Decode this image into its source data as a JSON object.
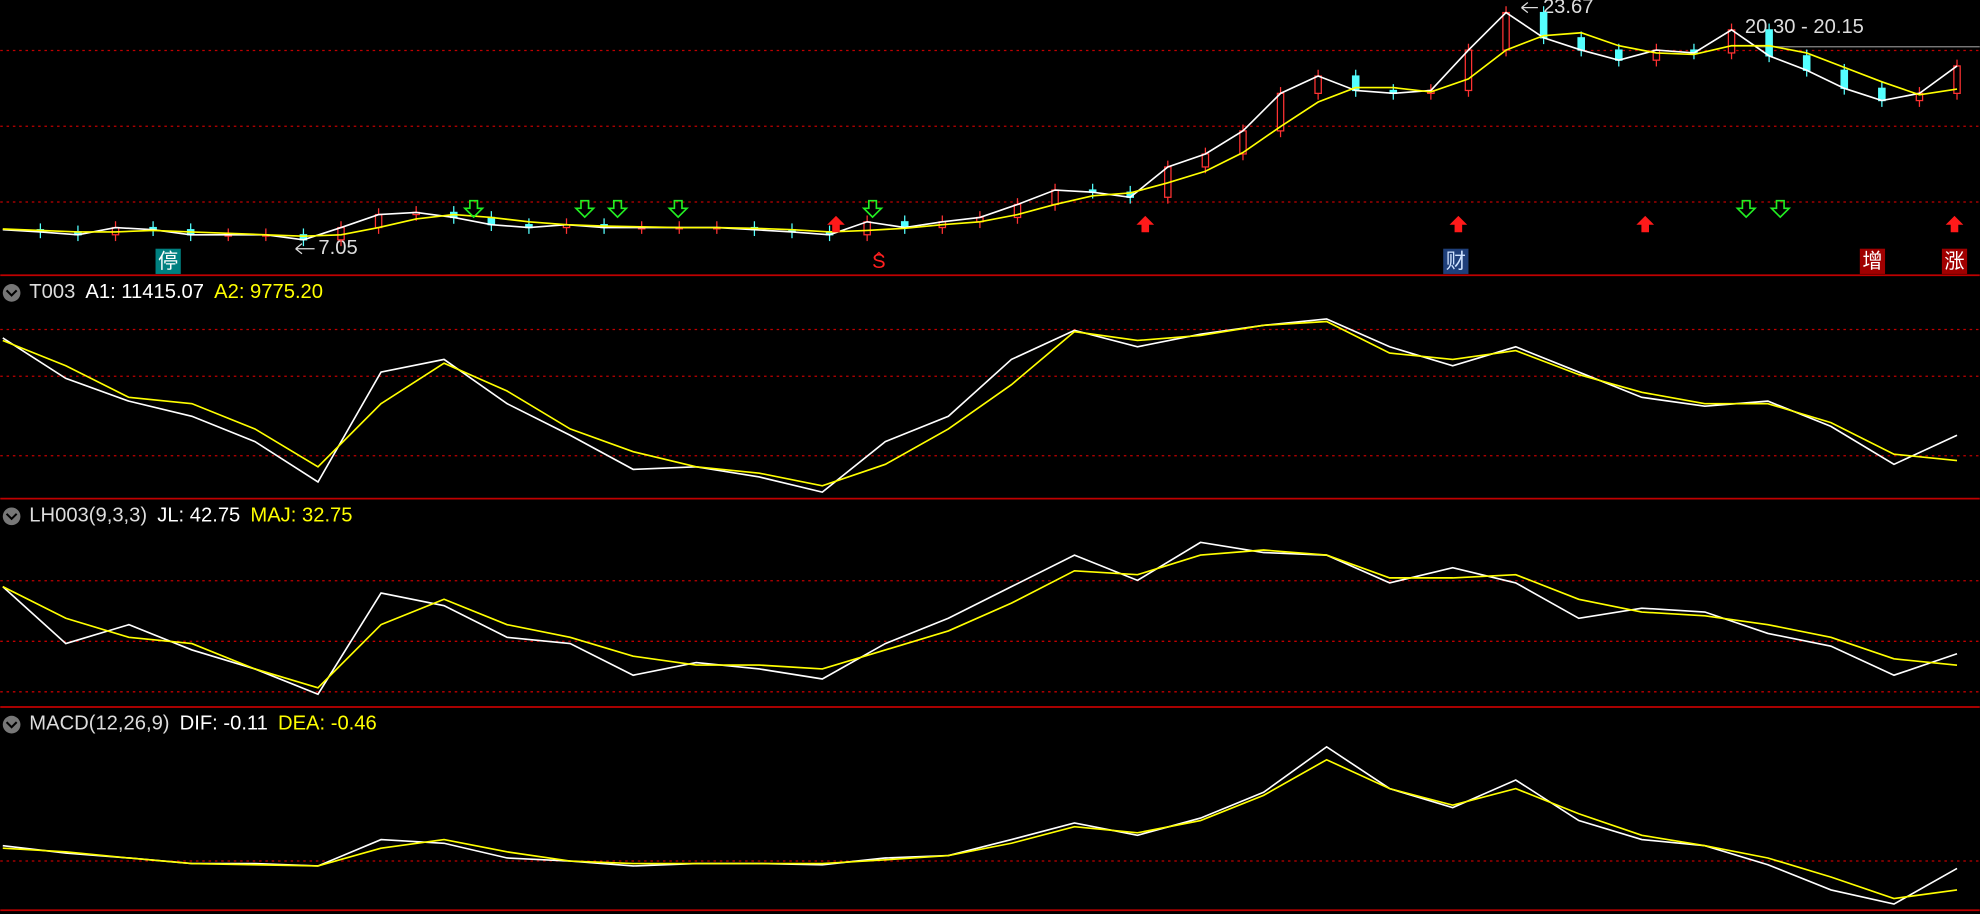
{
  "price": {
    "type": "candlestick",
    "ylim": [
      4.86,
      23.67
    ],
    "close": [
      7.75,
      7.6,
      7.4,
      7.9,
      7.75,
      7.4,
      7.4,
      7.4,
      7.05,
      7.9,
      8.8,
      8.95,
      8.6,
      8.1,
      7.9,
      8.1,
      7.9,
      7.9,
      7.9,
      7.9,
      7.75,
      7.6,
      7.4,
      8.3,
      7.9,
      8.3,
      8.6,
      9.5,
      10.5,
      10.35,
      10.0,
      12.1,
      13.0,
      14.6,
      17.2,
      18.4,
      17.4,
      17.2,
      17.4,
      20.2,
      22.8,
      21.05,
      20.2,
      19.5,
      20.2,
      20.0,
      21.6,
      19.8,
      18.8,
      17.55,
      16.7,
      17.2,
      19.1
    ],
    "ma": [
      7.8,
      7.7,
      7.6,
      7.6,
      7.7,
      7.6,
      7.5,
      7.4,
      7.3,
      7.4,
      7.9,
      8.5,
      8.8,
      8.6,
      8.3,
      8.1,
      8.0,
      7.95,
      7.9,
      7.9,
      7.85,
      7.75,
      7.6,
      7.7,
      7.85,
      8.1,
      8.3,
      8.8,
      9.5,
      10.1,
      10.3,
      11.0,
      11.8,
      13.1,
      14.9,
      16.6,
      17.6,
      17.6,
      17.3,
      18.2,
      20.2,
      21.2,
      21.4,
      20.5,
      20.0,
      19.9,
      20.5,
      20.5,
      20.0,
      19.0,
      18.0,
      17.1,
      17.5
    ],
    "up_color": "#ff3232",
    "down_color": "#54ffff",
    "ma_color": "#ffff00",
    "close_color": "#ffffff",
    "high_label": "23.67",
    "low_label": "7.05",
    "range_label": "20.30 - 20.15",
    "events": [
      {
        "label": "停",
        "color": "#ffffff",
        "background": "#008080"
      },
      {
        "label": "S",
        "color": "#ff2020",
        "background": null
      },
      {
        "label": "财",
        "color": "#cfe3ff",
        "background": "#1f3f7a"
      },
      {
        "label": "增",
        "color": "#ffffff",
        "background": "#a00000"
      },
      {
        "label": "涨",
        "color": "#ffffff",
        "background": "#a00000"
      }
    ]
  },
  "panes": [
    {
      "type": "line",
      "title": "T003",
      "ylim": [
        7300,
        21800
      ],
      "series": [
        {
          "name": "A1",
          "label": "A1: 11415.07",
          "color": "#ffffff",
          "values": [
            17729,
            15105,
            13629,
            12645,
            11005,
            8381,
            15515,
            16335,
            13465,
            11415,
            9201,
            9365,
            8709,
            7725,
            11005,
            12645,
            16335,
            18221,
            17155,
            17975,
            18549,
            18959,
            17155,
            15925,
            17155,
            15515,
            13875,
            13301,
            13629,
            11989,
            9529,
            11415.07
          ]
        },
        {
          "name": "A2",
          "label": "A2: 9775.20",
          "color": "#ffff00",
          "values": [
            17565,
            15925,
            13875,
            13465,
            11825,
            9365,
            13465,
            16089,
            14285,
            11825,
            10349,
            9365,
            8955,
            8135,
            9529,
            11825,
            14695,
            18139,
            17565,
            17893,
            18549,
            18795,
            16745,
            16335,
            16909,
            15351,
            14203,
            13465,
            13465,
            12235,
            10185,
            9775.2
          ]
        }
      ]
    },
    {
      "type": "line",
      "title": "LH003(9,3,3)",
      "ylim": [
        -4,
        179
      ],
      "series": [
        {
          "name": "JL",
          "label": "JL: 42.75",
          "color": "#ffffff",
          "values": [
            101.7,
            51.7,
            68.3,
            46.1,
            29.4,
            7.2,
            96.1,
            85,
            57.2,
            51.7,
            23.9,
            35,
            29.4,
            20.6,
            51.7,
            73.9,
            101.7,
            129.4,
            107.2,
            140.6,
            131.7,
            129.4,
            105,
            118.3,
            105,
            73.9,
            82.8,
            79.4,
            60.6,
            49.4,
            23.9,
            42.75
          ]
        },
        {
          "name": "MAJ",
          "label": "MAJ: 32.75",
          "color": "#ffff00",
          "values": [
            101.7,
            73.9,
            57.2,
            51.7,
            29.4,
            12.8,
            68.3,
            90.6,
            68.3,
            57.2,
            40.6,
            32.8,
            32.8,
            29.4,
            46.1,
            62.8,
            87.2,
            115.6,
            112.2,
            129.4,
            133.9,
            129.4,
            109.4,
            109.4,
            112.2,
            90.6,
            79.4,
            76.1,
            68.3,
            57.2,
            38.3,
            32.75
          ]
        }
      ]
    },
    {
      "type": "line",
      "title": "MACD(12,26,9)",
      "ylim": [
        -0.77,
        2.52
      ],
      "series": [
        {
          "name": "DIF",
          "label": "DIF: -0.11",
          "color": "#ffffff",
          "values": [
            0.26,
            0.14,
            0.06,
            -0.03,
            -0.03,
            -0.07,
            0.36,
            0.3,
            0.06,
            0.01,
            -0.07,
            -0.03,
            -0.03,
            -0.05,
            0.06,
            0.1,
            0.36,
            0.63,
            0.43,
            0.71,
            1.13,
            1.87,
            1.19,
            0.88,
            1.33,
            0.67,
            0.36,
            0.26,
            -0.05,
            -0.46,
            -0.69,
            -0.11
          ]
        },
        {
          "name": "DEA",
          "label": "DEA: -0.46",
          "color": "#ffff00",
          "values": [
            0.22,
            0.16,
            0.06,
            -0.03,
            -0.05,
            -0.07,
            0.22,
            0.36,
            0.16,
            0.01,
            -0.03,
            -0.03,
            -0.03,
            -0.03,
            0.03,
            0.1,
            0.3,
            0.57,
            0.47,
            0.67,
            1.08,
            1.66,
            1.19,
            0.92,
            1.19,
            0.78,
            0.43,
            0.26,
            0.06,
            -0.25,
            -0.6,
            -0.46
          ]
        }
      ]
    }
  ]
}
